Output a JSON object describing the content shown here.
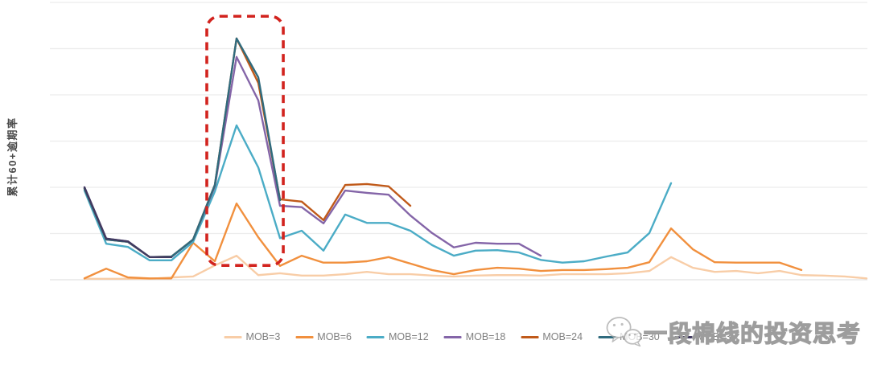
{
  "chart": {
    "y_axis_title": "累计60+逾期率",
    "legend": [
      {
        "label": "MOB=3",
        "color": "#f8cda7"
      },
      {
        "label": "MOB=6",
        "color": "#f1903e"
      },
      {
        "label": "MOB=12",
        "color": "#4bacc6"
      },
      {
        "label": "MOB=18",
        "color": "#8465a8"
      },
      {
        "label": "MOB=24",
        "color": "#c05a1a"
      },
      {
        "label": "MOB=30",
        "color": "#2f6b7e"
      },
      {
        "label": "MOB=36",
        "color": "#413a60"
      }
    ]
  },
  "chart_data": {
    "type": "line",
    "title": "",
    "xlabel": "",
    "ylabel": "累计60+逾期率",
    "x_unit": "vintage cohort index (37 monthly points, no tick labels shown)",
    "y_unit": "relative level; 1 = one gridline spacing (no y tick labels shown)",
    "ylim": [
      0,
      6
    ],
    "x_count": 37,
    "grid": "horizontal-only",
    "legend_position": "bottom-center",
    "series": [
      {
        "name": "MOB=3",
        "color": "#f8cda7",
        "start_index": 0,
        "values": [
          0.02,
          0.02,
          0.02,
          0.02,
          0.05,
          0.07,
          0.31,
          0.52,
          0.1,
          0.14,
          0.09,
          0.09,
          0.12,
          0.17,
          0.12,
          0.12,
          0.09,
          0.07,
          0.09,
          0.1,
          0.1,
          0.09,
          0.12,
          0.12,
          0.12,
          0.14,
          0.19,
          0.49,
          0.26,
          0.17,
          0.19,
          0.14,
          0.19,
          0.1,
          0.09,
          0.07,
          0.03
        ]
      },
      {
        "name": "MOB=6",
        "color": "#f1903e",
        "start_index": 0,
        "values": [
          0.03,
          0.24,
          0.05,
          0.03,
          0.03,
          0.8,
          0.4,
          1.65,
          0.92,
          0.3,
          0.52,
          0.37,
          0.37,
          0.4,
          0.49,
          0.35,
          0.21,
          0.12,
          0.21,
          0.26,
          0.24,
          0.19,
          0.21,
          0.21,
          0.23,
          0.26,
          0.38,
          1.11,
          0.66,
          0.38,
          0.37,
          0.37,
          0.37,
          0.21
        ]
      },
      {
        "name": "MOB=12",
        "color": "#4bacc6",
        "start_index": 0,
        "values": [
          1.93,
          0.78,
          0.71,
          0.42,
          0.42,
          0.82,
          1.91,
          3.34,
          2.43,
          0.9,
          1.06,
          0.63,
          1.41,
          1.23,
          1.23,
          1.06,
          0.75,
          0.52,
          0.63,
          0.64,
          0.59,
          0.43,
          0.37,
          0.4,
          0.5,
          0.59,
          1.01,
          2.09
        ]
      },
      {
        "name": "MOB=18",
        "color": "#8465a8",
        "start_index": 0,
        "values": [
          2.0,
          0.89,
          0.83,
          0.49,
          0.49,
          0.87,
          2.02,
          4.82,
          3.88,
          1.6,
          1.57,
          1.22,
          1.93,
          1.88,
          1.84,
          1.39,
          1.01,
          0.7,
          0.8,
          0.78,
          0.78,
          0.52
        ]
      },
      {
        "name": "MOB=24",
        "color": "#c05a1a",
        "start_index": 0,
        "values": [
          1.97,
          0.87,
          0.82,
          0.49,
          0.5,
          0.87,
          2.05,
          5.22,
          4.26,
          1.74,
          1.69,
          1.29,
          2.05,
          2.07,
          2.02,
          1.6
        ]
      },
      {
        "name": "MOB=30",
        "color": "#2f6b7e",
        "start_index": 0,
        "values": [
          1.97,
          0.87,
          0.82,
          0.49,
          0.5,
          0.87,
          2.05,
          5.22,
          4.38,
          1.72
        ]
      },
      {
        "name": "MOB=36",
        "color": "#413a60",
        "start_index": 0,
        "values": [
          2.0,
          0.89,
          0.83,
          0.49,
          0.49
        ]
      }
    ],
    "annotation": {
      "type": "red-dashed-box",
      "color": "#d2231e",
      "x_months": [
        5.63,
        9.15
      ],
      "y_units": [
        0.31,
        5.7
      ],
      "note": "dashed rounded rectangle highlighting the delinquency peak"
    }
  },
  "watermark": {
    "icon": "wechat-icon",
    "text": "一段棉线的投资思考"
  }
}
